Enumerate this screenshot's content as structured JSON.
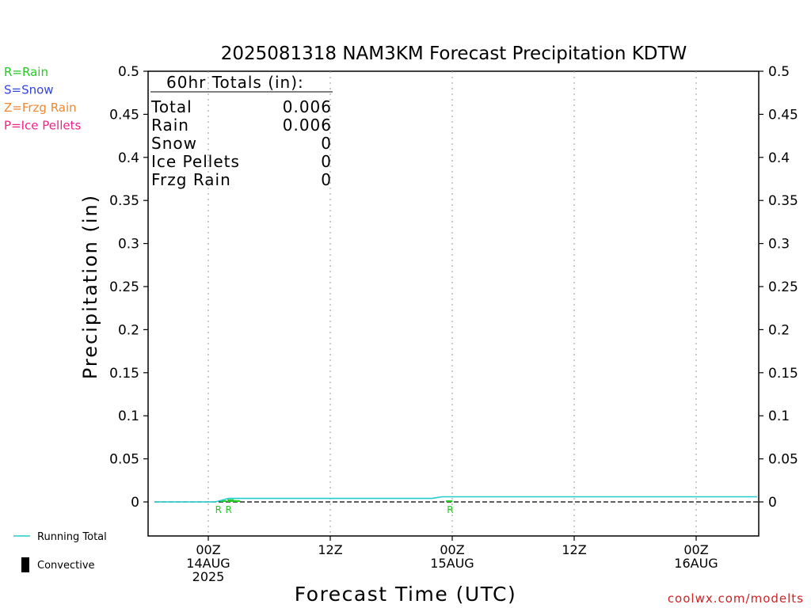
{
  "chart_data": {
    "type": "line",
    "title": "2025081318 NAM3KM Forecast Precipitation KDTW",
    "xlabel": "Forecast Time (UTC)",
    "ylabel": "Precipitation (in)",
    "ylim": [
      -0.04,
      0.5
    ],
    "xlim_hours": [
      -18,
      48
    ],
    "y_ticks": [
      0,
      0.05,
      0.1,
      0.15,
      0.2,
      0.25,
      0.3,
      0.35,
      0.4,
      0.45,
      0.5
    ],
    "y_tick_labels": [
      "0",
      "0.05",
      "0.1",
      "0.15",
      "0.2",
      "0.25",
      "0.3",
      "0.35",
      "0.4",
      "0.45",
      "0.5"
    ],
    "x_ticks": [
      {
        "hour": 0,
        "lines": [
          "00Z",
          "14AUG",
          "2025"
        ]
      },
      {
        "hour": 12,
        "lines": [
          "12Z"
        ]
      },
      {
        "hour": 24,
        "lines": [
          "00Z",
          "15AUG"
        ]
      },
      {
        "hour": 36,
        "lines": [
          "12Z"
        ]
      },
      {
        "hour": 48,
        "lines": [
          "00Z",
          "16AUG"
        ]
      }
    ],
    "grid": "vertical-dotted",
    "legend_types": [
      {
        "label": "R=Rain",
        "color": "#22cc22"
      },
      {
        "label": "S=Snow",
        "color": "#3344dd"
      },
      {
        "label": "Z=Frzg Rain",
        "color": "#ee8833"
      },
      {
        "label": "P=Ice Pellets",
        "color": "#ee2288"
      }
    ],
    "legend_lines": [
      {
        "label": "Running Total",
        "color": "#22cccc"
      },
      {
        "label": "Convective",
        "color": "#000000"
      }
    ],
    "series": [
      {
        "name": "Running Total",
        "color": "#22cccc",
        "points": [
          [
            -5.3,
            0
          ],
          [
            0.7,
            0
          ],
          [
            2,
            0.004
          ],
          [
            22,
            0.004
          ],
          [
            23,
            0.006
          ],
          [
            54,
            0.006
          ]
        ]
      }
    ],
    "rain_bars": {
      "color": "#22cc22",
      "points": [
        [
          1.5,
          0.001
        ],
        [
          2.2,
          0.003
        ],
        [
          2.8,
          0.002
        ],
        [
          23.7,
          0.001
        ]
      ]
    },
    "type_markers": [
      {
        "hour": 1.0,
        "label": "R"
      },
      {
        "hour": 2.0,
        "label": "R"
      },
      {
        "hour": 23.8,
        "label": "R"
      }
    ],
    "totals": {
      "heading": "60hr Totals (in):",
      "rows": [
        {
          "label": "Total",
          "value": "0.006"
        },
        {
          "label": "Rain",
          "value": "0.006"
        },
        {
          "label": "Snow",
          "value": "0"
        },
        {
          "label": "Ice Pellets",
          "value": "0"
        },
        {
          "label": "Frzg Rain",
          "value": "0"
        }
      ]
    }
  },
  "footer": {
    "credit": "coolwx.com/modelts"
  }
}
